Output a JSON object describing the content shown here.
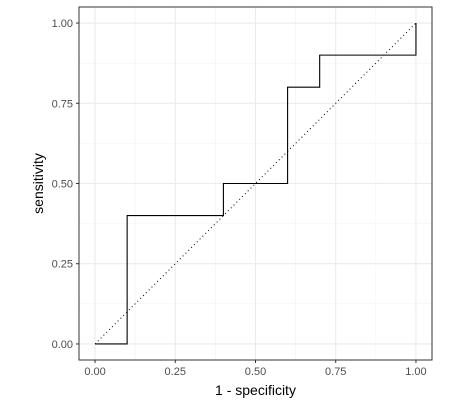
{
  "chart_data": {
    "type": "line",
    "title": "",
    "xlabel": "1 - specificity",
    "ylabel": "sensitivity",
    "xlim": [
      -0.05,
      1.05
    ],
    "ylim": [
      -0.05,
      1.05
    ],
    "grid": true,
    "x_ticks": [
      {
        "value": 0.0,
        "label": "0.00"
      },
      {
        "value": 0.25,
        "label": "0.25"
      },
      {
        "value": 0.5,
        "label": "0.50"
      },
      {
        "value": 0.75,
        "label": "0.75"
      },
      {
        "value": 1.0,
        "label": "1.00"
      }
    ],
    "y_ticks": [
      {
        "value": 0.0,
        "label": "0.00"
      },
      {
        "value": 0.25,
        "label": "0.25"
      },
      {
        "value": 0.5,
        "label": "0.50"
      },
      {
        "value": 0.75,
        "label": "0.75"
      },
      {
        "value": 1.0,
        "label": "1.00"
      }
    ],
    "series": [
      {
        "style": "step",
        "color": "#000000",
        "x": [
          0.0,
          0.1,
          0.1,
          0.4,
          0.4,
          0.6,
          0.6,
          0.7,
          0.7,
          1.0,
          1.0
        ],
        "y": [
          0.0,
          0.0,
          0.4,
          0.4,
          0.5,
          0.5,
          0.8,
          0.8,
          0.9,
          0.9,
          1.0
        ]
      }
    ],
    "reference_line": {
      "style": "dotted",
      "color": "#000000",
      "x": [
        0.0,
        1.0
      ],
      "y": [
        0.0,
        1.0
      ]
    }
  }
}
